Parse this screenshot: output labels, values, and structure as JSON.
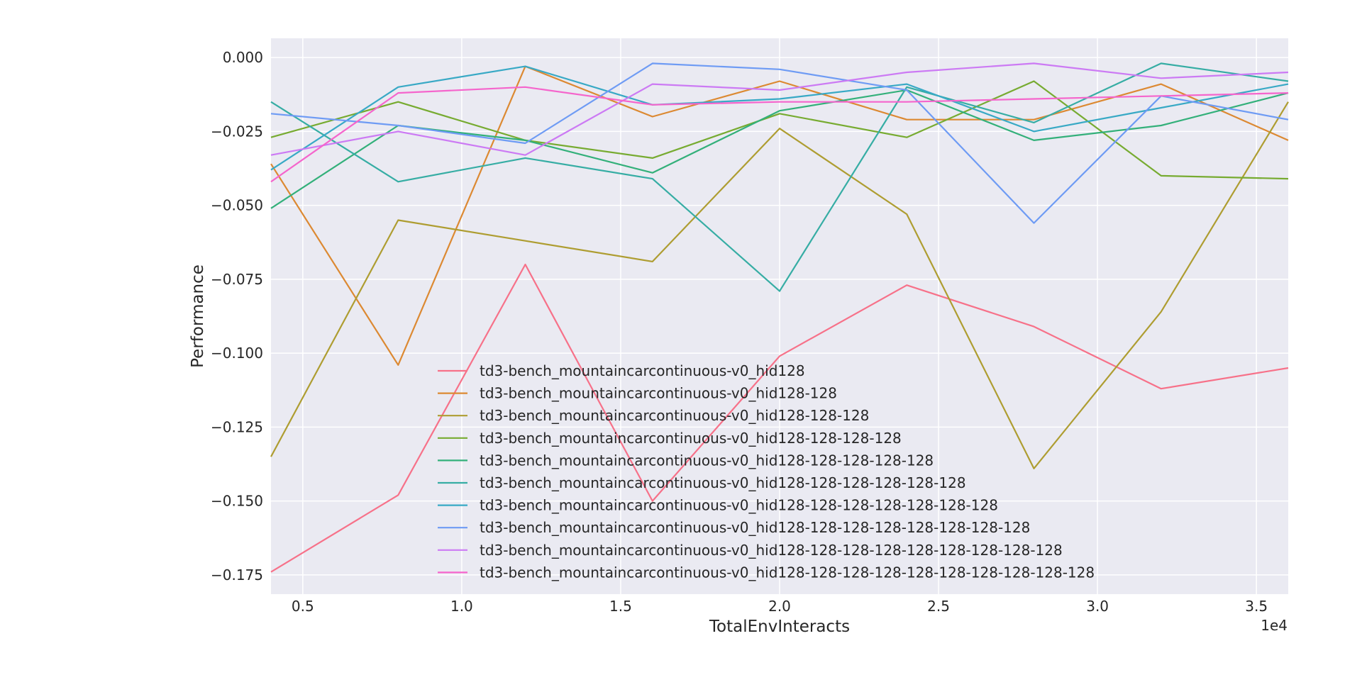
{
  "chart_data": {
    "type": "line",
    "xlabel": "TotalEnvInteracts",
    "ylabel": "Performance",
    "x_multiplier_label": "1e4",
    "x": [
      4000,
      8000,
      12000,
      16000,
      20000,
      24000,
      28000,
      32000,
      36000
    ],
    "xlim": [
      4000,
      36000
    ],
    "ylim": [
      -0.1815,
      0.0065
    ],
    "x_ticks": [
      5000,
      10000,
      15000,
      20000,
      25000,
      30000,
      35000
    ],
    "x_tick_labels": [
      "0.5",
      "1.0",
      "1.5",
      "2.0",
      "2.5",
      "3.0",
      "3.5"
    ],
    "y_ticks": [
      0.0,
      -0.025,
      -0.05,
      -0.075,
      -0.1,
      -0.125,
      -0.15,
      -0.175
    ],
    "y_tick_labels": [
      "0.000",
      "−0.025",
      "−0.050",
      "−0.075",
      "−0.100",
      "−0.125",
      "−0.150",
      "−0.175"
    ],
    "grid": true,
    "legend_position": "lower-center",
    "background_color": "#eaeaf2",
    "series": [
      {
        "name": "td3-bench_mountaincarcontinuous-v0_hid128",
        "color": "#f77189",
        "values": [
          -0.174,
          -0.148,
          -0.07,
          -0.15,
          -0.101,
          -0.077,
          -0.091,
          -0.112,
          -0.105
        ]
      },
      {
        "name": "td3-bench_mountaincarcontinuous-v0_hid128-128",
        "color": "#dc8932",
        "values": [
          -0.036,
          -0.104,
          -0.003,
          -0.02,
          -0.008,
          -0.021,
          -0.021,
          -0.009,
          -0.028
        ]
      },
      {
        "name": "td3-bench_mountaincarcontinuous-v0_hid128-128-128",
        "color": "#ae9d31",
        "values": [
          -0.135,
          -0.055,
          -0.062,
          -0.069,
          -0.024,
          -0.053,
          -0.139,
          -0.086,
          -0.015
        ]
      },
      {
        "name": "td3-bench_mountaincarcontinuous-v0_hid128-128-128-128",
        "color": "#77ab31",
        "values": [
          -0.027,
          -0.015,
          -0.028,
          -0.034,
          -0.019,
          -0.027,
          -0.008,
          -0.04,
          -0.041
        ]
      },
      {
        "name": "td3-bench_mountaincarcontinuous-v0_hid128-128-128-128-128",
        "color": "#33b07a",
        "values": [
          -0.051,
          -0.023,
          -0.028,
          -0.039,
          -0.018,
          -0.011,
          -0.028,
          -0.023,
          -0.012
        ]
      },
      {
        "name": "td3-bench_mountaincarcontinuous-v0_hid128-128-128-128-128-128",
        "color": "#36ada4",
        "values": [
          -0.015,
          -0.042,
          -0.034,
          -0.041,
          -0.079,
          -0.01,
          -0.022,
          -0.002,
          -0.008
        ]
      },
      {
        "name": "td3-bench_mountaincarcontinuous-v0_hid128-128-128-128-128-128-128",
        "color": "#38a9c5",
        "values": [
          -0.038,
          -0.01,
          -0.003,
          -0.016,
          -0.014,
          -0.009,
          -0.025,
          -0.017,
          -0.009
        ]
      },
      {
        "name": "td3-bench_mountaincarcontinuous-v0_hid128-128-128-128-128-128-128-128",
        "color": "#6e9bf4",
        "values": [
          -0.019,
          -0.023,
          -0.029,
          -0.002,
          -0.004,
          -0.011,
          -0.056,
          -0.013,
          -0.021
        ]
      },
      {
        "name": "td3-bench_mountaincarcontinuous-v0_hid128-128-128-128-128-128-128-128-128",
        "color": "#cc7af4",
        "values": [
          -0.033,
          -0.025,
          -0.033,
          -0.009,
          -0.011,
          -0.005,
          -0.002,
          -0.007,
          -0.005
        ]
      },
      {
        "name": "td3-bench_mountaincarcontinuous-v0_hid128-128-128-128-128-128-128-128-128-128",
        "color": "#f565cc",
        "values": [
          -0.042,
          -0.012,
          -0.01,
          -0.016,
          -0.015,
          -0.015,
          -0.014,
          -0.013,
          -0.012
        ]
      }
    ]
  }
}
